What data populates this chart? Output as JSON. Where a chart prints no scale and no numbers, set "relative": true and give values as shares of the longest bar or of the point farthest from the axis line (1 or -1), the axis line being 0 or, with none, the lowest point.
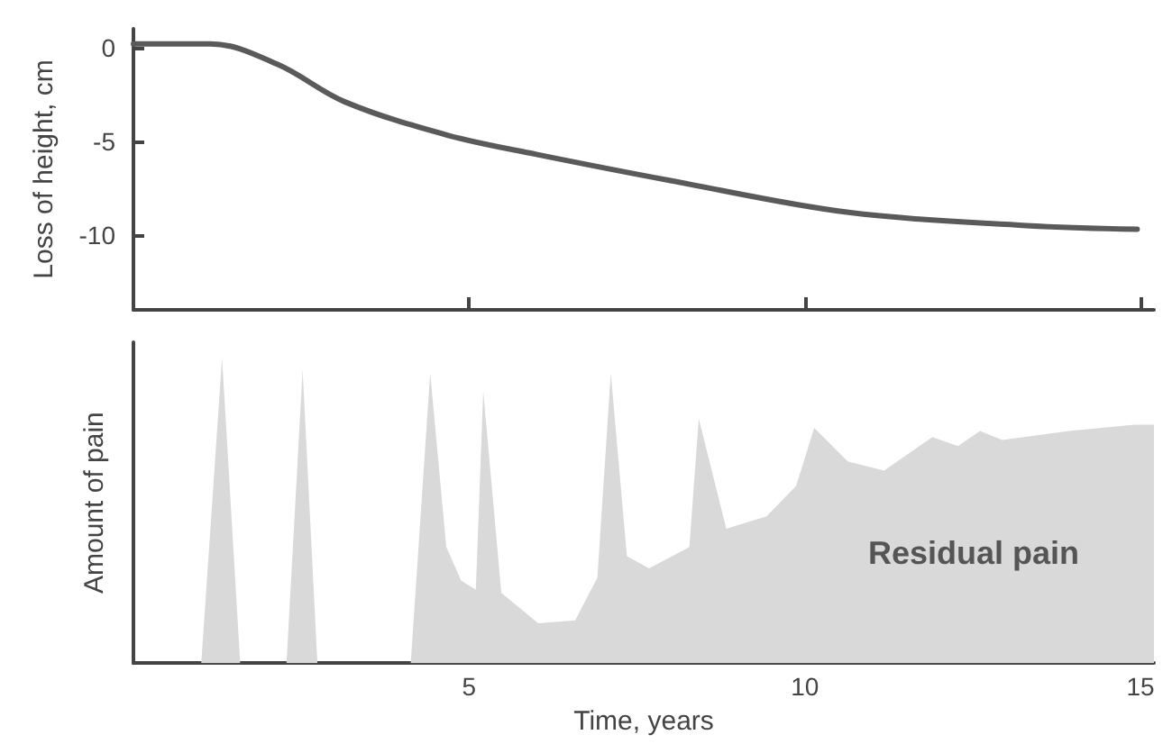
{
  "chart_data": [
    {
      "type": "line",
      "ylabel": "Loss of height, cm",
      "x": [
        0,
        1.15,
        2.15,
        3.15,
        4.7,
        6.0,
        8.0,
        10.65,
        13.3,
        14.95
      ],
      "series": [
        {
          "color": "#5a5a5a",
          "values": [
            0.2,
            0.2,
            -0.9,
            -2.9,
            -4.7,
            -5.7,
            -7.1,
            -8.8,
            -9.5,
            -9.7
          ]
        }
      ],
      "xlim": [
        0,
        15.2
      ],
      "xticks": [
        5,
        10,
        15
      ],
      "ylim": [
        -14,
        1
      ],
      "yticks": [
        0,
        -5,
        -10
      ],
      "tick_labels": "y",
      "grid": false,
      "marker": "none",
      "line_style": "solid"
    },
    {
      "type": "area",
      "relative": true,
      "ylabel": "Amount of pain",
      "xlabel": "Time, years",
      "x": [
        0,
        1.01,
        1.32,
        1.59,
        2.28,
        2.52,
        2.74,
        4.13,
        4.42,
        4.66,
        4.88,
        5.1,
        5.21,
        5.48,
        6.03,
        6.58,
        6.91,
        7.11,
        7.35,
        7.68,
        8.28,
        8.42,
        8.83,
        9.43,
        9.87,
        10.14,
        10.64,
        11.18,
        11.9,
        12.28,
        12.61,
        12.94,
        13.93,
        14.91,
        15.2
      ],
      "series": [
        {
          "color": "#d9d9d9",
          "values": [
            0,
            0,
            1.0,
            0,
            0,
            0.96,
            0,
            0,
            0.95,
            0.38,
            0.27,
            0.24,
            0.89,
            0.23,
            0.13,
            0.14,
            0.28,
            0.95,
            0.35,
            0.31,
            0.38,
            0.8,
            0.44,
            0.48,
            0.58,
            0.77,
            0.66,
            0.63,
            0.74,
            0.71,
            0.76,
            0.73,
            0.76,
            0.78,
            0.78
          ]
        }
      ],
      "xlim": [
        0,
        15.2
      ],
      "xticks": [
        5,
        10,
        15
      ],
      "tick_labels": "x",
      "grid": false,
      "annotations": [
        "Residual pain"
      ]
    }
  ]
}
